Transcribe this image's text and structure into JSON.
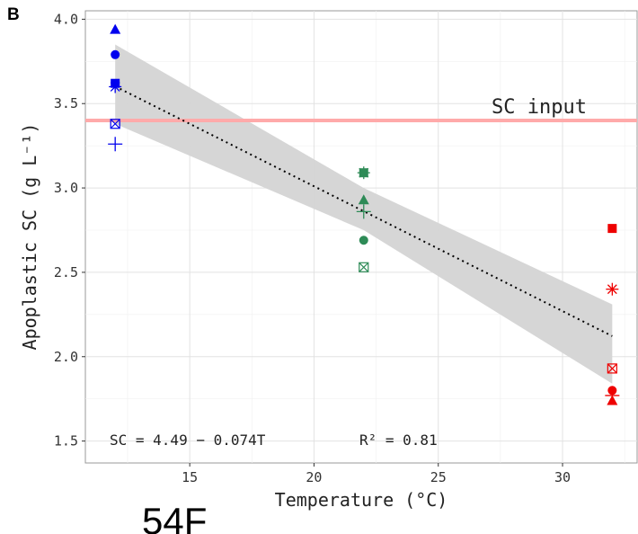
{
  "panel_label": "B",
  "footer_label": "54F",
  "colors": {
    "blue": "#0000ee",
    "green": "#2e8b57",
    "red": "#ee0000",
    "band": "#d4d4d4",
    "reference_line": "#ffaaaa"
  },
  "chart_data": {
    "type": "scatter",
    "xlabel": "Temperature (°C)",
    "ylabel": "Apoplastic SC (g L⁻¹)",
    "xlim": [
      10.8,
      33
    ],
    "ylim": [
      1.37,
      4.05
    ],
    "xticks": [
      15,
      20,
      25,
      30
    ],
    "yticks": [
      1.5,
      2.0,
      2.5,
      3.0,
      3.5,
      4.0
    ],
    "grid": true,
    "points": [
      {
        "x": 12,
        "y": 3.94,
        "shape": "triangle",
        "color": "blue"
      },
      {
        "x": 12,
        "y": 3.79,
        "shape": "circle",
        "color": "blue"
      },
      {
        "x": 12,
        "y": 3.62,
        "shape": "square",
        "color": "blue"
      },
      {
        "x": 12,
        "y": 3.6,
        "shape": "asterisk",
        "color": "blue"
      },
      {
        "x": 12,
        "y": 3.38,
        "shape": "boxed-x",
        "color": "blue"
      },
      {
        "x": 12,
        "y": 3.26,
        "shape": "plus",
        "color": "blue"
      },
      {
        "x": 22,
        "y": 3.09,
        "shape": "square",
        "color": "green"
      },
      {
        "x": 22,
        "y": 3.09,
        "shape": "asterisk",
        "color": "green"
      },
      {
        "x": 22,
        "y": 2.93,
        "shape": "triangle",
        "color": "green"
      },
      {
        "x": 22,
        "y": 2.86,
        "shape": "plus",
        "color": "green"
      },
      {
        "x": 22,
        "y": 2.69,
        "shape": "circle",
        "color": "green"
      },
      {
        "x": 22,
        "y": 2.53,
        "shape": "boxed-x",
        "color": "green"
      },
      {
        "x": 32,
        "y": 2.76,
        "shape": "square",
        "color": "red"
      },
      {
        "x": 32,
        "y": 2.4,
        "shape": "asterisk",
        "color": "red"
      },
      {
        "x": 32,
        "y": 1.93,
        "shape": "boxed-x",
        "color": "red"
      },
      {
        "x": 32,
        "y": 1.8,
        "shape": "circle",
        "color": "red"
      },
      {
        "x": 32,
        "y": 1.77,
        "shape": "plus",
        "color": "red"
      },
      {
        "x": 32,
        "y": 1.74,
        "shape": "triangle",
        "color": "red"
      }
    ],
    "regression": {
      "intercept": 4.49,
      "slope": -0.074,
      "x_range": [
        12,
        32
      ],
      "style": "dotted"
    },
    "confidence_band": [
      {
        "x": 12,
        "lower": 3.38,
        "upper": 3.85
      },
      {
        "x": 22,
        "lower": 2.75,
        "upper": 3.0
      },
      {
        "x": 32,
        "lower": 1.84,
        "upper": 2.31
      }
    ],
    "reference_line": {
      "y": 3.4,
      "label": "SC input"
    },
    "equation": "SC = 4.49 − 0.074T",
    "r_squared": "R² = 0.81"
  }
}
